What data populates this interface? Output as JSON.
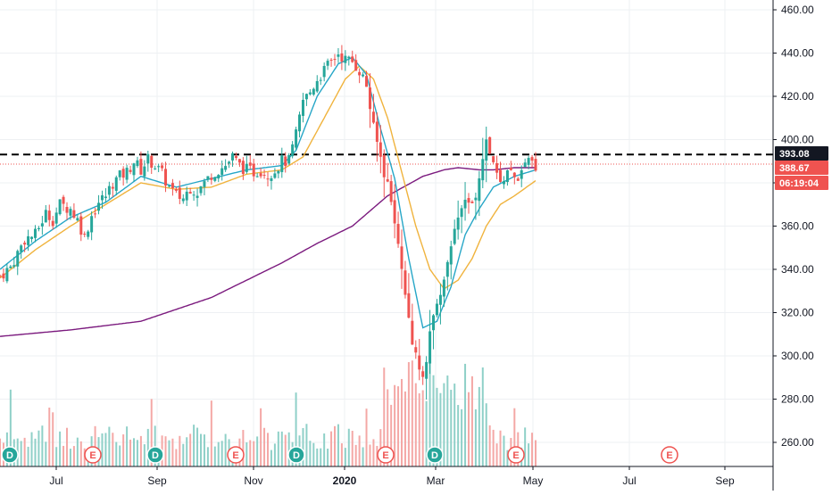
{
  "chart_data": {
    "type": "candlestick",
    "y_axis": {
      "ticks": [
        "460.00",
        "440.00",
        "420.00",
        "400.00",
        "380.00",
        "360.00",
        "340.00",
        "320.00",
        "300.00",
        "280.00",
        "260.00"
      ],
      "tick_values": [
        460,
        440,
        420,
        400,
        380,
        360,
        340,
        320,
        300,
        280,
        260
      ],
      "range": [
        247.5,
        466
      ]
    },
    "x_axis": {
      "ticks": [
        "Jul",
        "Sep",
        "Nov",
        "2020",
        "Mar",
        "May",
        "Jul",
        "Sep"
      ],
      "bold": [
        false,
        false,
        false,
        true,
        false,
        false,
        false,
        false
      ]
    },
    "price_labels": [
      {
        "text": "393.08",
        "value": 393.08,
        "bg": "#131722"
      },
      {
        "text": "388.67",
        "value": 388.67,
        "bg": "#ef5350"
      },
      {
        "text": "06:19:04",
        "bg": "#ef5350"
      }
    ],
    "horizontal_lines": [
      {
        "value": 393.08,
        "style": "dashed",
        "color": "#000000"
      },
      {
        "value": 388.67,
        "style": "dotted",
        "color": "#ef5350"
      }
    ],
    "events": [
      {
        "label": "D",
        "kind": "dividend"
      },
      {
        "label": "E",
        "kind": "earnings"
      },
      {
        "label": "D",
        "kind": "dividend"
      },
      {
        "label": "E",
        "kind": "earnings"
      },
      {
        "label": "D",
        "kind": "dividend"
      },
      {
        "label": "E",
        "kind": "earnings"
      },
      {
        "label": "D",
        "kind": "dividend"
      },
      {
        "label": "E",
        "kind": "earnings"
      },
      {
        "label": "E",
        "kind": "earnings"
      }
    ],
    "price_path": [
      [
        0,
        337
      ],
      [
        3,
        341
      ],
      [
        7,
        354
      ],
      [
        10,
        356
      ],
      [
        13,
        366
      ],
      [
        15,
        363
      ],
      [
        17,
        370
      ],
      [
        20,
        368
      ],
      [
        22,
        363
      ],
      [
        24,
        355
      ],
      [
        26,
        365
      ],
      [
        28,
        371
      ],
      [
        30,
        374
      ],
      [
        32,
        380
      ],
      [
        34,
        383
      ],
      [
        36,
        385
      ],
      [
        38,
        390
      ],
      [
        40,
        386
      ],
      [
        42,
        391
      ],
      [
        44,
        388
      ],
      [
        46,
        384
      ],
      [
        48,
        378
      ],
      [
        50,
        374
      ],
      [
        52,
        373
      ],
      [
        54,
        378
      ],
      [
        56,
        376
      ],
      [
        58,
        380
      ],
      [
        60,
        384
      ],
      [
        62,
        386
      ],
      [
        64,
        388
      ],
      [
        66,
        392
      ],
      [
        68,
        388
      ],
      [
        70,
        386
      ],
      [
        72,
        385
      ],
      [
        74,
        386
      ],
      [
        76,
        384
      ],
      [
        78,
        386
      ],
      [
        80,
        390
      ],
      [
        82,
        390
      ],
      [
        84,
        402
      ],
      [
        86,
        418
      ],
      [
        88,
        422
      ],
      [
        90,
        428
      ],
      [
        92,
        432
      ],
      [
        94,
        436
      ],
      [
        96,
        440
      ],
      [
        98,
        437
      ],
      [
        100,
        436
      ],
      [
        102,
        432
      ],
      [
        104,
        425
      ],
      [
        106,
        405
      ],
      [
        108,
        392
      ],
      [
        110,
        378
      ],
      [
        112,
        360
      ],
      [
        114,
        340
      ],
      [
        116,
        315
      ],
      [
        118,
        300
      ],
      [
        120,
        290
      ],
      [
        122,
        310
      ],
      [
        124,
        325
      ],
      [
        126,
        335
      ],
      [
        128,
        350
      ],
      [
        130,
        362
      ],
      [
        132,
        370
      ],
      [
        134,
        368
      ],
      [
        136,
        382
      ],
      [
        138,
        398
      ],
      [
        140,
        388
      ],
      [
        142,
        379
      ],
      [
        144,
        386
      ],
      [
        146,
        382
      ],
      [
        148,
        384
      ],
      [
        150,
        390
      ],
      [
        152,
        388
      ]
    ],
    "ma_fast": [
      [
        0,
        340
      ],
      [
        10,
        353
      ],
      [
        20,
        364
      ],
      [
        30,
        371
      ],
      [
        40,
        383
      ],
      [
        50,
        378
      ],
      [
        60,
        382
      ],
      [
        70,
        386
      ],
      [
        80,
        388
      ],
      [
        84,
        395
      ],
      [
        90,
        420
      ],
      [
        96,
        435
      ],
      [
        100,
        438
      ],
      [
        104,
        430
      ],
      [
        108,
        405
      ],
      [
        112,
        382
      ],
      [
        116,
        345
      ],
      [
        120,
        313
      ],
      [
        124,
        316
      ],
      [
        128,
        332
      ],
      [
        132,
        356
      ],
      [
        136,
        368
      ],
      [
        140,
        378
      ],
      [
        146,
        383
      ],
      [
        152,
        386
      ]
    ],
    "ma_mid": [
      [
        0,
        336
      ],
      [
        10,
        349
      ],
      [
        20,
        360
      ],
      [
        30,
        370
      ],
      [
        40,
        380
      ],
      [
        50,
        377
      ],
      [
        60,
        378
      ],
      [
        70,
        384
      ],
      [
        80,
        386
      ],
      [
        86,
        392
      ],
      [
        92,
        410
      ],
      [
        98,
        428
      ],
      [
        102,
        434
      ],
      [
        106,
        428
      ],
      [
        110,
        410
      ],
      [
        114,
        385
      ],
      [
        118,
        360
      ],
      [
        122,
        340
      ],
      [
        126,
        331
      ],
      [
        130,
        335
      ],
      [
        134,
        345
      ],
      [
        138,
        360
      ],
      [
        142,
        370
      ],
      [
        146,
        374
      ],
      [
        152,
        381
      ]
    ],
    "ma_slow": [
      [
        0,
        309
      ],
      [
        20,
        312
      ],
      [
        40,
        316
      ],
      [
        60,
        327
      ],
      [
        80,
        343
      ],
      [
        90,
        352
      ],
      [
        100,
        360
      ],
      [
        110,
        374
      ],
      [
        120,
        383
      ],
      [
        126,
        386
      ],
      [
        130,
        387
      ],
      [
        136,
        386
      ],
      [
        140,
        386
      ],
      [
        146,
        387
      ],
      [
        152,
        387
      ]
    ],
    "colors": {
      "up": "#26a69a",
      "down": "#ef5350",
      "ma_fast": "#26a6c7",
      "ma_mid": "#f0b33d",
      "ma_slow": "#7b1a7e",
      "grid": "#eef0f3",
      "axis": "#131722"
    }
  }
}
